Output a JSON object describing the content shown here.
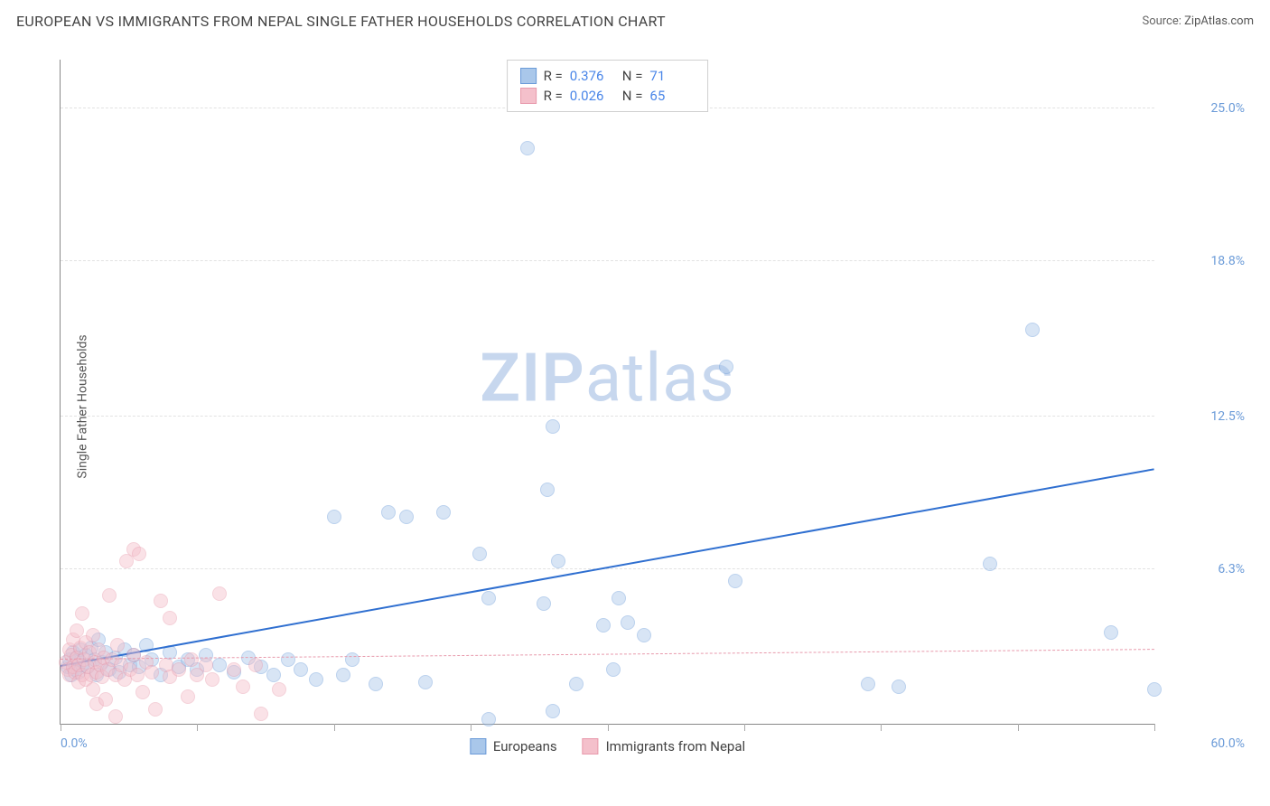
{
  "title": "EUROPEAN VS IMMIGRANTS FROM NEPAL SINGLE FATHER HOUSEHOLDS CORRELATION CHART",
  "source_prefix": "Source: ",
  "source_link": "ZipAtlas.com",
  "ylabel": "Single Father Households",
  "watermark_bold": "ZIP",
  "watermark_rest": "atlas",
  "watermark_color": "#c7d7ee",
  "chart": {
    "type": "scatter",
    "xlim": [
      0,
      60
    ],
    "ylim": [
      0,
      27
    ],
    "xlabel_min": "0.0%",
    "xlabel_max": "60.0%",
    "xtick_count": 8,
    "ytick_labels": [
      "25.0%",
      "18.8%",
      "12.5%",
      "6.3%"
    ],
    "ytick_values": [
      25.0,
      18.8,
      12.5,
      6.3
    ],
    "ytick_color": "#6b9bd8",
    "grid_color": "#e2e2e2",
    "background_color": "#ffffff",
    "point_radius": 8,
    "point_opacity": 0.45,
    "series": [
      {
        "name": "Europeans",
        "color_fill": "#a9c7ea",
        "color_stroke": "#6b9bd8",
        "r_label": "R  =",
        "r_value": "0.376",
        "n_label": "N  =",
        "n_value": "71",
        "trend": {
          "x1": 0,
          "y1": 2.3,
          "x2": 60,
          "y2": 10.3,
          "color": "#2f6fd0",
          "width": 2.5,
          "dash": "solid"
        },
        "points": [
          [
            0.4,
            2.3
          ],
          [
            0.5,
            2.6
          ],
          [
            0.6,
            2.0
          ],
          [
            0.7,
            2.9
          ],
          [
            0.8,
            2.2
          ],
          [
            0.9,
            2.7
          ],
          [
            1.0,
            2.1
          ],
          [
            1.1,
            3.0
          ],
          [
            1.2,
            2.4
          ],
          [
            1.4,
            2.8
          ],
          [
            1.5,
            2.3
          ],
          [
            1.7,
            3.1
          ],
          [
            1.9,
            2.6
          ],
          [
            2.0,
            2.0
          ],
          [
            2.1,
            3.4
          ],
          [
            2.3,
            2.5
          ],
          [
            2.5,
            2.9
          ],
          [
            2.7,
            2.2
          ],
          [
            3.0,
            2.7
          ],
          [
            3.2,
            2.1
          ],
          [
            3.5,
            3.0
          ],
          [
            3.8,
            2.4
          ],
          [
            4.0,
            2.8
          ],
          [
            4.3,
            2.3
          ],
          [
            4.7,
            3.2
          ],
          [
            5.0,
            2.6
          ],
          [
            5.5,
            2.0
          ],
          [
            6.0,
            2.9
          ],
          [
            6.5,
            2.3
          ],
          [
            7.0,
            2.6
          ],
          [
            7.5,
            2.2
          ],
          [
            8.0,
            2.8
          ],
          [
            8.7,
            2.4
          ],
          [
            9.5,
            2.1
          ],
          [
            10.3,
            2.7
          ],
          [
            11.0,
            2.3
          ],
          [
            11.7,
            2.0
          ],
          [
            12.5,
            2.6
          ],
          [
            13.2,
            2.2
          ],
          [
            14.0,
            1.8
          ],
          [
            15.0,
            8.4
          ],
          [
            15.5,
            2.0
          ],
          [
            16.0,
            2.6
          ],
          [
            17.3,
            1.6
          ],
          [
            18.0,
            8.6
          ],
          [
            19.0,
            8.4
          ],
          [
            20.0,
            1.7
          ],
          [
            21.0,
            8.6
          ],
          [
            23.0,
            6.9
          ],
          [
            23.5,
            5.1
          ],
          [
            23.5,
            0.2
          ],
          [
            25.6,
            23.4
          ],
          [
            26.5,
            4.9
          ],
          [
            26.7,
            9.5
          ],
          [
            27.0,
            0.5
          ],
          [
            27.0,
            12.1
          ],
          [
            27.3,
            6.6
          ],
          [
            28.3,
            1.6
          ],
          [
            29.8,
            4.0
          ],
          [
            30.3,
            2.2
          ],
          [
            30.6,
            5.1
          ],
          [
            31.1,
            4.1
          ],
          [
            32.0,
            3.6
          ],
          [
            36.5,
            14.5
          ],
          [
            37.0,
            5.8
          ],
          [
            44.3,
            1.6
          ],
          [
            46.0,
            1.5
          ],
          [
            51.0,
            6.5
          ],
          [
            53.3,
            16.0
          ],
          [
            57.6,
            3.7
          ],
          [
            60.0,
            1.4
          ]
        ]
      },
      {
        "name": "Immigrants from Nepal",
        "color_fill": "#f4c0cb",
        "color_stroke": "#e89aac",
        "r_label": "R  =",
        "r_value": "0.026",
        "n_label": "N  =",
        "n_value": "65",
        "trend": {
          "x1": 0,
          "y1": 2.6,
          "x2": 60,
          "y2": 3.0,
          "color": "#e89aac",
          "width": 1.2,
          "dash": "dashed"
        },
        "points": [
          [
            0.3,
            2.5
          ],
          [
            0.4,
            2.2
          ],
          [
            0.5,
            3.0
          ],
          [
            0.5,
            2.0
          ],
          [
            0.6,
            2.8
          ],
          [
            0.7,
            2.3
          ],
          [
            0.7,
            3.4
          ],
          [
            0.8,
            2.1
          ],
          [
            0.9,
            2.7
          ],
          [
            0.9,
            3.8
          ],
          [
            1.0,
            2.4
          ],
          [
            1.0,
            1.7
          ],
          [
            1.1,
            3.1
          ],
          [
            1.2,
            2.0
          ],
          [
            1.2,
            4.5
          ],
          [
            1.3,
            2.6
          ],
          [
            1.4,
            1.8
          ],
          [
            1.4,
            3.3
          ],
          [
            1.5,
            2.3
          ],
          [
            1.6,
            2.9
          ],
          [
            1.7,
            2.0
          ],
          [
            1.8,
            1.4
          ],
          [
            1.8,
            3.6
          ],
          [
            1.9,
            2.5
          ],
          [
            2.0,
            2.1
          ],
          [
            2.0,
            0.8
          ],
          [
            2.1,
            3.0
          ],
          [
            2.2,
            2.4
          ],
          [
            2.3,
            1.9
          ],
          [
            2.4,
            2.7
          ],
          [
            2.5,
            1.0
          ],
          [
            2.6,
            2.2
          ],
          [
            2.7,
            5.2
          ],
          [
            2.8,
            2.6
          ],
          [
            3.0,
            2.0
          ],
          [
            3.0,
            0.3
          ],
          [
            3.1,
            3.2
          ],
          [
            3.3,
            2.4
          ],
          [
            3.5,
            1.8
          ],
          [
            3.6,
            6.6
          ],
          [
            3.8,
            2.2
          ],
          [
            4.0,
            2.8
          ],
          [
            4.0,
            7.1
          ],
          [
            4.2,
            2.0
          ],
          [
            4.3,
            6.9
          ],
          [
            4.5,
            1.3
          ],
          [
            4.7,
            2.5
          ],
          [
            5.0,
            2.1
          ],
          [
            5.2,
            0.6
          ],
          [
            5.5,
            5.0
          ],
          [
            5.8,
            2.4
          ],
          [
            6.0,
            1.9
          ],
          [
            6.0,
            4.3
          ],
          [
            6.5,
            2.2
          ],
          [
            7.0,
            1.1
          ],
          [
            7.2,
            2.6
          ],
          [
            7.5,
            2.0
          ],
          [
            8.0,
            2.4
          ],
          [
            8.3,
            1.8
          ],
          [
            8.7,
            5.3
          ],
          [
            9.5,
            2.2
          ],
          [
            10.0,
            1.5
          ],
          [
            10.7,
            2.4
          ],
          [
            11.0,
            0.4
          ],
          [
            12.0,
            1.4
          ]
        ]
      }
    ]
  },
  "legend_bottom": [
    {
      "label": "Europeans",
      "fill": "#a9c7ea",
      "stroke": "#6b9bd8"
    },
    {
      "label": "Immigrants from Nepal",
      "fill": "#f4c0cb",
      "stroke": "#e89aac"
    }
  ]
}
